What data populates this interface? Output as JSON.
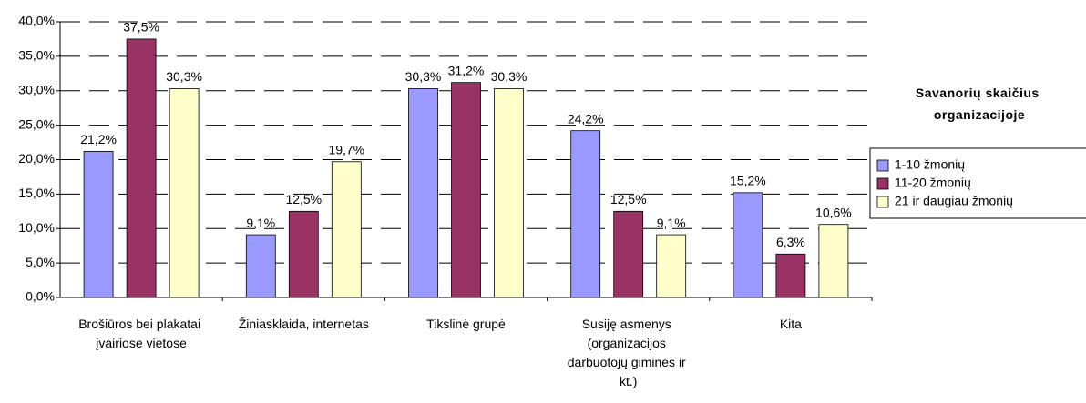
{
  "chart_data": {
    "type": "bar",
    "categories": [
      "Brošiūros bei plakatai įvairiose vietose",
      "Žiniasklaida, internetas",
      "Tikslinė grupė",
      "Susiję asmenys (organizacijos darbuotojų giminės ir kt.)",
      "Kita"
    ],
    "series": [
      {
        "name": "1-10 žmonių",
        "color": "#9999ff",
        "values": [
          21.2,
          9.1,
          30.3,
          24.2,
          15.2
        ],
        "value_labels": [
          "21,2%",
          "9,1%",
          "30,3%",
          "24,2%",
          "15,2%"
        ]
      },
      {
        "name": "11-20 žmonių",
        "color": "#993366",
        "values": [
          37.5,
          12.5,
          31.2,
          12.5,
          6.3
        ],
        "value_labels": [
          "37,5%",
          "12,5%",
          "31,2%",
          "12,5%",
          "6,3%"
        ]
      },
      {
        "name": "21 ir daugiau žmonių",
        "color": "#ffffcc",
        "values": [
          30.3,
          19.7,
          30.3,
          9.1,
          10.6
        ],
        "value_labels": [
          "30,3%",
          "19,7%",
          "30,3%",
          "9,1%",
          "10,6%"
        ]
      }
    ],
    "legend_title": "Savanorių skaičius organizacijoje",
    "legend": "right",
    "ylim": [
      0,
      40
    ],
    "yticks": [
      {
        "value": 0,
        "label": "0,0%"
      },
      {
        "value": 5,
        "label": "5,0%"
      },
      {
        "value": 10,
        "label": "10,0%"
      },
      {
        "value": 15,
        "label": "15,0%"
      },
      {
        "value": 20,
        "label": "20,0%"
      },
      {
        "value": 25,
        "label": "25,0%"
      },
      {
        "value": 30,
        "label": "30,0%"
      },
      {
        "value": 35,
        "label": "35,0%"
      },
      {
        "value": 40,
        "label": "40,0%"
      }
    ],
    "grid": true
  }
}
